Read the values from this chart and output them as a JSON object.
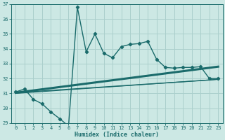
{
  "xlabel": "Humidex (Indice chaleur)",
  "background_color": "#cce8e4",
  "grid_color": "#aacfcc",
  "line_color": "#1a6b6b",
  "xlim": [
    -0.5,
    23.5
  ],
  "ylim": [
    29,
    37
  ],
  "yticks": [
    29,
    30,
    31,
    32,
    33,
    34,
    35,
    36,
    37
  ],
  "xticks": [
    0,
    1,
    2,
    3,
    4,
    5,
    6,
    7,
    8,
    9,
    10,
    11,
    12,
    13,
    14,
    15,
    16,
    17,
    18,
    19,
    20,
    21,
    22,
    23
  ],
  "line1_x": [
    0,
    1,
    2,
    3,
    4,
    5,
    6,
    7,
    8,
    9,
    10,
    11,
    12,
    13,
    14,
    15,
    16,
    17,
    18,
    19,
    20,
    21,
    22,
    23
  ],
  "line1_y": [
    31.1,
    31.3,
    30.6,
    30.3,
    29.75,
    29.3,
    28.8,
    36.8,
    33.8,
    35.0,
    33.7,
    33.4,
    34.15,
    34.3,
    34.35,
    34.5,
    33.3,
    32.75,
    32.7,
    32.75,
    32.75,
    32.8,
    32.0,
    32.0
  ],
  "line2_x": [
    0,
    23
  ],
  "line2_y": [
    31.05,
    32.8
  ],
  "line3_x": [
    0,
    22,
    23
  ],
  "line3_y": [
    31.05,
    31.9,
    31.95
  ],
  "line4_x": [
    0,
    23
  ],
  "line4_y": [
    31.0,
    31.95
  ]
}
